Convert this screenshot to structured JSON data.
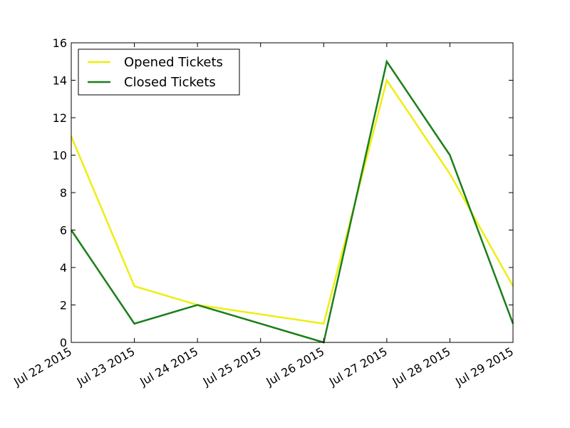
{
  "chart_data": {
    "type": "line",
    "title": "",
    "xlabel": "",
    "ylabel": "",
    "x": [
      "Jul 22 2015",
      "Jul 23 2015",
      "Jul 24 2015",
      "Jul 25 2015",
      "Jul 26 2015",
      "Jul 27 2015",
      "Jul 28 2015",
      "Jul 29 2015"
    ],
    "xticks": [
      "Jul 22 2015",
      "Jul 23 2015",
      "Jul 24 2015",
      "Jul 25 2015",
      "Jul 26 2015",
      "Jul 27 2015",
      "Jul 28 2015",
      "Jul 29 2015"
    ],
    "ylim": [
      0,
      16
    ],
    "yticks": [
      0,
      2,
      4,
      6,
      8,
      10,
      12,
      14,
      16
    ],
    "grid": false,
    "legend_position": "top-left",
    "series": [
      {
        "name": "Opened Tickets",
        "color": "#eeee11",
        "points": [
          {
            "x": "Jul 22 2015",
            "y": 11
          },
          {
            "x": "Jul 23 2015",
            "y": 3
          },
          {
            "x": "Jul 24 2015",
            "y": 2
          },
          {
            "x": "Jul 26 2015",
            "y": 1
          },
          {
            "x": "Jul 27 2015",
            "y": 14
          },
          {
            "x": "Jul 28 2015",
            "y": 9
          },
          {
            "x": "Jul 29 2015",
            "y": 3
          }
        ]
      },
      {
        "name": "Closed Tickets",
        "color": "#1b7f1b",
        "points": [
          {
            "x": "Jul 22 2015",
            "y": 6
          },
          {
            "x": "Jul 23 2015",
            "y": 1
          },
          {
            "x": "Jul 24 2015",
            "y": 2
          },
          {
            "x": "Jul 26 2015",
            "y": 0
          },
          {
            "x": "Jul 27 2015",
            "y": 15
          },
          {
            "x": "Jul 28 2015",
            "y": 10
          },
          {
            "x": "Jul 29 2015",
            "y": 1
          }
        ]
      }
    ]
  }
}
